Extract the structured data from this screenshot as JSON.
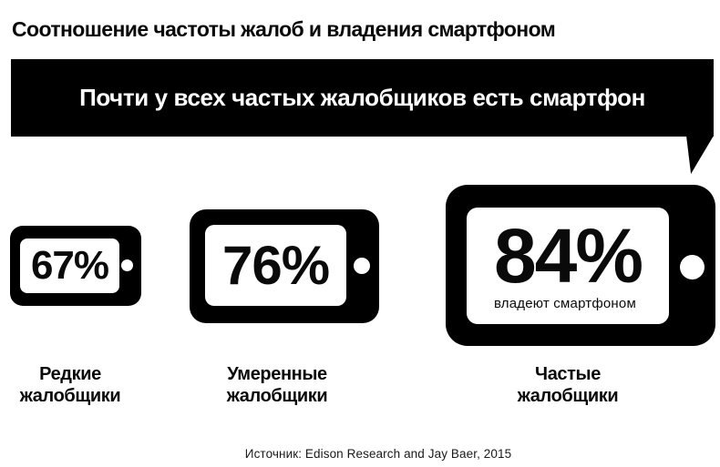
{
  "header": {
    "title": "Соотношение частоты жалоб и владения смартфоном"
  },
  "banner": {
    "text": "Почти у всех частых жалобщиков есть смартфон",
    "bg_color": "#000000",
    "text_color": "#ffffff"
  },
  "phones": [
    {
      "value": "67%",
      "label_line1": "Редкие",
      "label_line2": "жалобщики"
    },
    {
      "value": "76%",
      "label_line1": "Умеренные",
      "label_line2": "жалобщики"
    },
    {
      "value": "84%",
      "caption": "владеют смартфоном",
      "label_line1": "Частые",
      "label_line2": "жалобщики"
    }
  ],
  "footer": {
    "source": "Источник: Edison Research and Jay Baer, 2015"
  },
  "chart_data": {
    "type": "bar",
    "title": "Соотношение частоты жалоб и владения смартфоном",
    "subtitle": "Почти у всех частых жалобщиков есть смартфон",
    "categories": [
      "Редкие жалобщики",
      "Умеренные жалобщики",
      "Частые жалобщики"
    ],
    "values": [
      67,
      76,
      84
    ],
    "unit": "%",
    "value_labels": [
      "67%",
      "76%",
      "84%"
    ],
    "annotation": "владеют смартфоном",
    "source": "Источник: Edison Research and Jay Baer, 2015",
    "legend": false,
    "grid": false,
    "colors": {
      "ink": "#000000",
      "background": "#ffffff"
    }
  }
}
